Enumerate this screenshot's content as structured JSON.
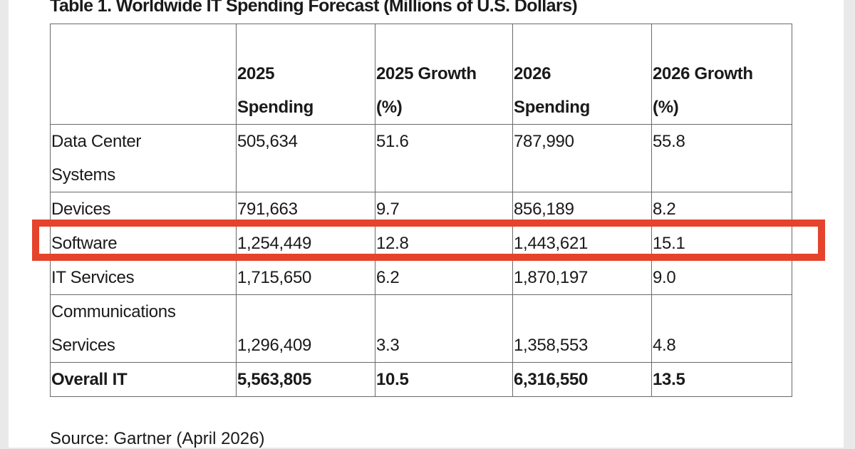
{
  "title": "Table 1. Worldwide IT Spending Forecast (Millions of U.S. Dollars)",
  "table": {
    "headers": [
      {
        "line1": "",
        "line2": ""
      },
      {
        "line1": "2025",
        "line2": "Spending"
      },
      {
        "line1": "2025 Growth",
        "line2": "(%)"
      },
      {
        "line1": "2026",
        "line2": "Spending"
      },
      {
        "line1": "2026 Growth",
        "line2": "(%)"
      }
    ],
    "rows": [
      {
        "segment": "Data Center Systems",
        "spend_2025": "505,634",
        "growth_2025": "51.6",
        "spend_2026": "787,990",
        "growth_2026": "55.8"
      },
      {
        "segment": "Devices",
        "spend_2025": "791,663",
        "growth_2025": "9.7",
        "spend_2026": "856,189",
        "growth_2026": "8.2"
      },
      {
        "segment": "Software",
        "spend_2025": "1,254,449",
        "growth_2025": "12.8",
        "spend_2026": "1,443,621",
        "growth_2026": "15.1"
      },
      {
        "segment": "IT Services",
        "spend_2025": "1,715,650",
        "growth_2025": "6.2",
        "spend_2026": "1,870,197",
        "growth_2026": "9.0"
      },
      {
        "segment": "Communications Services",
        "spend_2025": "1,296,409",
        "growth_2025": "3.3",
        "spend_2026": "1,358,553",
        "growth_2026": "4.8"
      },
      {
        "segment": "Overall IT",
        "spend_2025": "5,563,805",
        "growth_2025": "10.5",
        "spend_2026": "6,316,550",
        "growth_2026": "13.5"
      }
    ],
    "highlighted_row": "Software"
  },
  "source": "Source: Gartner (April 2026)",
  "colors": {
    "highlight": "#e5432b",
    "border": "#6a6a6a"
  }
}
